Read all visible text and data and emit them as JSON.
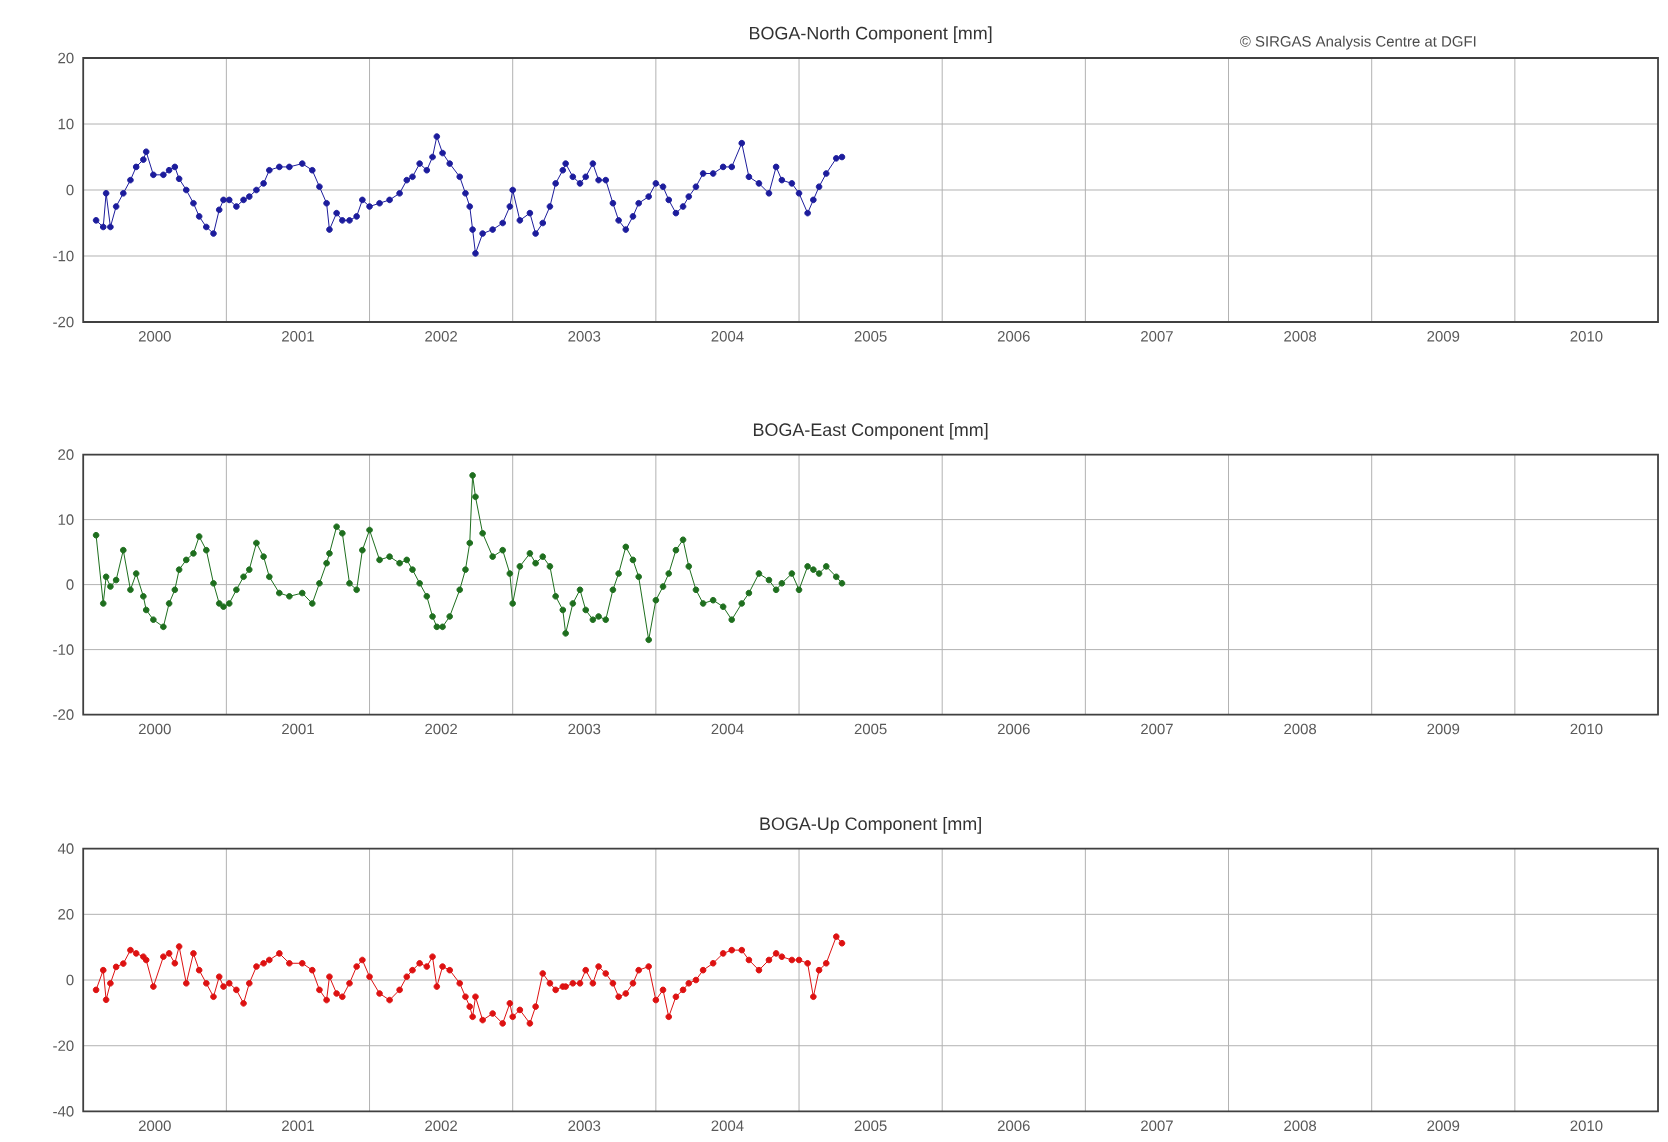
{
  "chart_data": [
    {
      "type": "line",
      "title": "BOGA-North Component [mm]",
      "marker": "circle",
      "grid": true,
      "annotations": [
        "© SIRGAS Analysis Centre at DGFI"
      ],
      "xlim": [
        2000,
        2011
      ],
      "ylim": [
        -20,
        20
      ],
      "yticks": [
        -20,
        -10,
        0,
        10,
        20
      ],
      "xticks": [
        {
          "value": 2000.5,
          "label": "2000"
        },
        {
          "value": 2001,
          "label": null
        },
        {
          "value": 2001.5,
          "label": "2001"
        },
        {
          "value": 2002,
          "label": null
        },
        {
          "value": 2002.5,
          "label": "2002"
        },
        {
          "value": 2003,
          "label": null
        },
        {
          "value": 2003.5,
          "label": "2003"
        },
        {
          "value": 2004,
          "label": null
        },
        {
          "value": 2004.5,
          "label": "2004"
        },
        {
          "value": 2005,
          "label": null
        },
        {
          "value": 2005.5,
          "label": "2005"
        },
        {
          "value": 2006,
          "label": null
        },
        {
          "value": 2006.5,
          "label": "2006"
        },
        {
          "value": 2007,
          "label": null
        },
        {
          "value": 2007.5,
          "label": "2007"
        },
        {
          "value": 2008,
          "label": null
        },
        {
          "value": 2008.5,
          "label": "2008"
        },
        {
          "value": 2009,
          "label": null
        },
        {
          "value": 2009.5,
          "label": "2009"
        },
        {
          "value": 2010,
          "label": null
        },
        {
          "value": 2010.5,
          "label": "2010"
        }
      ],
      "x": [
        2000.09,
        2000.14,
        2000.16,
        2000.19,
        2000.23,
        2000.28,
        2000.33,
        2000.37,
        2000.42,
        2000.44,
        2000.49,
        2000.56,
        2000.6,
        2000.64,
        2000.67,
        2000.72,
        2000.77,
        2000.81,
        2000.86,
        2000.91,
        2000.95,
        2000.98,
        2001.02,
        2001.07,
        2001.12,
        2001.16,
        2001.21,
        2001.26,
        2001.3,
        2001.37,
        2001.44,
        2001.53,
        2001.6,
        2001.65,
        2001.7,
        2001.72,
        2001.77,
        2001.81,
        2001.86,
        2001.91,
        2001.95,
        2002.0,
        2002.07,
        2002.14,
        2002.21,
        2002.26,
        2002.3,
        2002.35,
        2002.4,
        2002.44,
        2002.47,
        2002.51,
        2002.56,
        2002.63,
        2002.67,
        2002.7,
        2002.72,
        2002.74,
        2002.79,
        2002.86,
        2002.93,
        2002.98,
        2003.0,
        2003.05,
        2003.12,
        2003.16,
        2003.21,
        2003.26,
        2003.3,
        2003.35,
        2003.37,
        2003.42,
        2003.47,
        2003.51,
        2003.56,
        2003.6,
        2003.65,
        2003.7,
        2003.74,
        2003.79,
        2003.84,
        2003.88,
        2003.95,
        2004.0,
        2004.05,
        2004.09,
        2004.14,
        2004.19,
        2004.23,
        2004.28,
        2004.33,
        2004.4,
        2004.47,
        2004.53,
        2004.6,
        2004.65,
        2004.72,
        2004.79,
        2004.84,
        2004.88,
        2004.95,
        2005.0,
        2005.06,
        2005.1,
        2005.14,
        2005.19,
        2005.26,
        2005.3
      ],
      "series": [
        {
          "color": "#1c1c9c",
          "values": [
            -4.6,
            -5.6,
            -0.5,
            -5.6,
            -2.5,
            -0.5,
            1.5,
            3.5,
            4.6,
            5.8,
            2.3,
            2.3,
            3,
            3.5,
            1.7,
            0,
            -2,
            -4,
            -5.6,
            -6.6,
            -3,
            -1.5,
            -1.5,
            -2.5,
            -1.5,
            -1,
            0,
            1,
            3,
            3.5,
            3.5,
            4,
            3,
            0.5,
            -2,
            -6,
            -3.5,
            -4.6,
            -4.6,
            -4,
            -1.5,
            -2.5,
            -2,
            -1.5,
            -0.5,
            1.5,
            2,
            4,
            3,
            5,
            8.1,
            5.6,
            4,
            2,
            -0.5,
            -2.5,
            -6,
            -9.6,
            -6.6,
            -6,
            -5,
            -2.5,
            0,
            -4.6,
            -3.5,
            -6.6,
            -5,
            -2.5,
            1,
            3,
            4,
            2,
            1,
            2,
            4,
            1.5,
            1.5,
            -2,
            -4.6,
            -6,
            -4,
            -2,
            -1,
            1,
            0.5,
            -1.5,
            -3.5,
            -2.5,
            -1,
            0.5,
            2.5,
            2.5,
            3.5,
            3.5,
            7.1,
            2,
            1,
            -0.5,
            3.5,
            1.5,
            1,
            -0.5,
            -3.5,
            -1.5,
            0.5,
            2.5,
            4.8,
            5
          ]
        }
      ]
    },
    {
      "type": "line",
      "title": "BOGA-East Component [mm]",
      "marker": "circle",
      "grid": true,
      "xlim": [
        2000,
        2011
      ],
      "ylim": [
        -20,
        20
      ],
      "yticks": [
        -20,
        -10,
        0,
        10,
        20
      ],
      "xticks": [
        {
          "value": 2000.5,
          "label": "2000"
        },
        {
          "value": 2001,
          "label": null
        },
        {
          "value": 2001.5,
          "label": "2001"
        },
        {
          "value": 2002,
          "label": null
        },
        {
          "value": 2002.5,
          "label": "2002"
        },
        {
          "value": 2003,
          "label": null
        },
        {
          "value": 2003.5,
          "label": "2003"
        },
        {
          "value": 2004,
          "label": null
        },
        {
          "value": 2004.5,
          "label": "2004"
        },
        {
          "value": 2005,
          "label": null
        },
        {
          "value": 2005.5,
          "label": "2005"
        },
        {
          "value": 2006,
          "label": null
        },
        {
          "value": 2006.5,
          "label": "2006"
        },
        {
          "value": 2007,
          "label": null
        },
        {
          "value": 2007.5,
          "label": "2007"
        },
        {
          "value": 2008,
          "label": null
        },
        {
          "value": 2008.5,
          "label": "2008"
        },
        {
          "value": 2009,
          "label": null
        },
        {
          "value": 2009.5,
          "label": "2009"
        },
        {
          "value": 2010,
          "label": null
        },
        {
          "value": 2010.5,
          "label": "2010"
        }
      ],
      "x": [
        2000.09,
        2000.14,
        2000.16,
        2000.19,
        2000.23,
        2000.28,
        2000.33,
        2000.37,
        2000.42,
        2000.44,
        2000.49,
        2000.56,
        2000.6,
        2000.64,
        2000.67,
        2000.72,
        2000.77,
        2000.81,
        2000.86,
        2000.91,
        2000.95,
        2000.98,
        2001.02,
        2001.07,
        2001.12,
        2001.16,
        2001.21,
        2001.26,
        2001.3,
        2001.37,
        2001.44,
        2001.53,
        2001.6,
        2001.65,
        2001.7,
        2001.72,
        2001.77,
        2001.81,
        2001.86,
        2001.91,
        2001.95,
        2002.0,
        2002.07,
        2002.14,
        2002.21,
        2002.26,
        2002.3,
        2002.35,
        2002.4,
        2002.44,
        2002.47,
        2002.51,
        2002.56,
        2002.63,
        2002.67,
        2002.7,
        2002.72,
        2002.74,
        2002.79,
        2002.86,
        2002.93,
        2002.98,
        2003.0,
        2003.05,
        2003.12,
        2003.16,
        2003.21,
        2003.26,
        2003.3,
        2003.35,
        2003.37,
        2003.42,
        2003.47,
        2003.51,
        2003.56,
        2003.6,
        2003.65,
        2003.7,
        2003.74,
        2003.79,
        2003.84,
        2003.88,
        2003.95,
        2004.0,
        2004.05,
        2004.09,
        2004.14,
        2004.19,
        2004.23,
        2004.28,
        2004.33,
        2004.4,
        2004.47,
        2004.53,
        2004.6,
        2004.65,
        2004.72,
        2004.79,
        2004.84,
        2004.88,
        2004.95,
        2005.0,
        2005.06,
        2005.1,
        2005.14,
        2005.19,
        2005.26,
        2005.3
      ],
      "series": [
        {
          "color": "#1e6e1e",
          "values": [
            7.6,
            -2.9,
            1.2,
            -0.3,
            0.7,
            5.3,
            -0.8,
            1.7,
            -1.8,
            -3.9,
            -5.4,
            -6.5,
            -2.9,
            -0.8,
            2.3,
            3.8,
            4.8,
            7.4,
            5.3,
            0.2,
            -2.9,
            -3.4,
            -2.9,
            -0.8,
            1.2,
            2.3,
            6.4,
            4.3,
            1.2,
            -1.3,
            -1.8,
            -1.3,
            -2.9,
            0.2,
            3.3,
            4.8,
            8.9,
            7.9,
            0.2,
            -0.8,
            5.3,
            8.4,
            3.8,
            4.3,
            3.3,
            3.8,
            2.3,
            0.2,
            -1.8,
            -4.9,
            -6.5,
            -6.5,
            -4.9,
            -0.8,
            2.3,
            6.4,
            16.8,
            13.5,
            7.9,
            4.3,
            5.3,
            1.7,
            -2.9,
            2.8,
            4.8,
            3.3,
            4.3,
            2.8,
            -1.8,
            -3.9,
            -7.5,
            -2.9,
            -0.8,
            -3.9,
            -5.4,
            -4.9,
            -5.4,
            -0.8,
            1.7,
            5.8,
            3.8,
            1.2,
            -8.5,
            -2.4,
            -0.3,
            1.7,
            5.3,
            6.9,
            2.8,
            -0.8,
            -2.9,
            -2.4,
            -3.4,
            -5.4,
            -2.9,
            -1.3,
            1.7,
            0.7,
            -0.8,
            0.2,
            1.7,
            -0.8,
            2.8,
            2.3,
            1.7,
            2.8,
            1.2,
            0.2
          ]
        }
      ]
    },
    {
      "type": "line",
      "title": "BOGA-Up Component [mm]",
      "marker": "circle",
      "grid": true,
      "xlim": [
        2000,
        2011
      ],
      "ylim": [
        -40,
        40
      ],
      "yticks": [
        -40,
        -20,
        0,
        20,
        40
      ],
      "xticks": [
        {
          "value": 2000.5,
          "label": "2000"
        },
        {
          "value": 2001,
          "label": null
        },
        {
          "value": 2001.5,
          "label": "2001"
        },
        {
          "value": 2002,
          "label": null
        },
        {
          "value": 2002.5,
          "label": "2002"
        },
        {
          "value": 2003,
          "label": null
        },
        {
          "value": 2003.5,
          "label": "2003"
        },
        {
          "value": 2004,
          "label": null
        },
        {
          "value": 2004.5,
          "label": "2004"
        },
        {
          "value": 2005,
          "label": null
        },
        {
          "value": 2005.5,
          "label": "2005"
        },
        {
          "value": 2006,
          "label": null
        },
        {
          "value": 2006.5,
          "label": "2006"
        },
        {
          "value": 2007,
          "label": null
        },
        {
          "value": 2007.5,
          "label": "2007"
        },
        {
          "value": 2008,
          "label": null
        },
        {
          "value": 2008.5,
          "label": "2008"
        },
        {
          "value": 2009,
          "label": null
        },
        {
          "value": 2009.5,
          "label": "2009"
        },
        {
          "value": 2010,
          "label": null
        },
        {
          "value": 2010.5,
          "label": "2010"
        }
      ],
      "x": [
        2000.09,
        2000.14,
        2000.16,
        2000.19,
        2000.23,
        2000.28,
        2000.33,
        2000.37,
        2000.42,
        2000.44,
        2000.49,
        2000.56,
        2000.6,
        2000.64,
        2000.67,
        2000.72,
        2000.77,
        2000.81,
        2000.86,
        2000.91,
        2000.95,
        2000.98,
        2001.02,
        2001.07,
        2001.12,
        2001.16,
        2001.21,
        2001.26,
        2001.3,
        2001.37,
        2001.44,
        2001.53,
        2001.6,
        2001.65,
        2001.7,
        2001.72,
        2001.77,
        2001.81,
        2001.86,
        2001.91,
        2001.95,
        2002.0,
        2002.07,
        2002.14,
        2002.21,
        2002.26,
        2002.3,
        2002.35,
        2002.4,
        2002.44,
        2002.47,
        2002.51,
        2002.56,
        2002.63,
        2002.67,
        2002.7,
        2002.72,
        2002.74,
        2002.79,
        2002.86,
        2002.93,
        2002.98,
        2003.0,
        2003.05,
        2003.12,
        2003.16,
        2003.21,
        2003.26,
        2003.3,
        2003.35,
        2003.37,
        2003.42,
        2003.47,
        2003.51,
        2003.56,
        2003.6,
        2003.65,
        2003.7,
        2003.74,
        2003.79,
        2003.84,
        2003.88,
        2003.95,
        2004.0,
        2004.05,
        2004.09,
        2004.14,
        2004.19,
        2004.23,
        2004.28,
        2004.33,
        2004.4,
        2004.47,
        2004.53,
        2004.6,
        2004.65,
        2004.72,
        2004.79,
        2004.84,
        2004.88,
        2004.95,
        2005.0,
        2005.06,
        2005.1,
        2005.14,
        2005.19,
        2005.26,
        2005.3
      ],
      "series": [
        {
          "color": "#dd1111",
          "values": [
            -3,
            3,
            -6,
            -1,
            4,
            5,
            9.1,
            8.1,
            7.1,
            6.1,
            -2,
            7.1,
            8.1,
            5.1,
            10.2,
            -1,
            8.1,
            3,
            -1,
            -5.1,
            1,
            -2,
            -1,
            -3,
            -7.1,
            -1,
            4.1,
            5.1,
            6.1,
            8.1,
            5.1,
            5.1,
            3,
            -3,
            -6.1,
            1,
            -4.1,
            -5.1,
            -1,
            4.1,
            6.1,
            1,
            -4.1,
            -6.1,
            -3,
            1,
            3,
            5.1,
            4.1,
            7.1,
            -2,
            4.1,
            3,
            -1,
            -5.1,
            -8.1,
            -11.2,
            -5.1,
            -12.2,
            -10.2,
            -13.2,
            -7.1,
            -11.2,
            -9.1,
            -13.2,
            -8.1,
            2,
            -1,
            -3,
            -2,
            -2,
            -1,
            -1,
            3,
            -1,
            4.1,
            2,
            -1,
            -5.1,
            -4.1,
            -1,
            3,
            4.1,
            -6.1,
            -3,
            -11.2,
            -5.1,
            -3,
            -1,
            0,
            3,
            5.1,
            8.1,
            9.1,
            9.1,
            6.1,
            3,
            6.1,
            8.1,
            7.1,
            6.1,
            6.1,
            5.1,
            -5.1,
            3,
            5.1,
            13.2,
            11.2
          ]
        }
      ]
    }
  ]
}
